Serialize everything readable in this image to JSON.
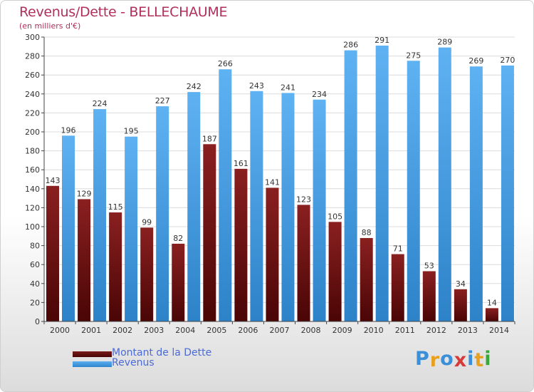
{
  "chart_data": {
    "type": "bar",
    "title": "Revenus/Dette - BELLECHAUME",
    "subtitle": "(en milliers d'€)",
    "xlabel": "",
    "ylabel": "",
    "ylim": [
      0,
      300
    ],
    "yticks": [
      "0",
      "20",
      "40",
      "60",
      "80",
      "100",
      "120",
      "140",
      "160",
      "180",
      "200",
      "220",
      "240",
      "260",
      "280",
      "300"
    ],
    "grid": true,
    "categories": [
      "2000",
      "2001",
      "2002",
      "2003",
      "2004",
      "2005",
      "2006",
      "2007",
      "2008",
      "2009",
      "2010",
      "2011",
      "2012",
      "2013",
      "2014"
    ],
    "series": [
      {
        "name": "Montant de la Dette",
        "color": "#6b1212",
        "values": [
          143,
          129,
          115,
          99,
          82,
          187,
          161,
          141,
          123,
          105,
          88,
          71,
          53,
          34,
          14
        ],
        "labels": [
          "143",
          "129",
          "115",
          "99",
          "82",
          "187",
          "161",
          "141",
          "123",
          "105",
          "88",
          "71",
          "53",
          "34",
          "14"
        ]
      },
      {
        "name": "Revenus",
        "color": "#4a9be0",
        "values": [
          196,
          224,
          195,
          227,
          242,
          266,
          243,
          241,
          234,
          286,
          291,
          275,
          289,
          269,
          270
        ],
        "labels": [
          "196",
          "224",
          "195",
          "227",
          "242",
          "266",
          "243",
          "241",
          "234",
          "286",
          "291",
          "275",
          "289",
          "269",
          "270"
        ]
      }
    ],
    "legend_position": "bottom-left"
  },
  "brand": {
    "letters": [
      "P",
      "r",
      "o",
      "x",
      "i",
      "t",
      "i"
    ],
    "colors": [
      "#3a8fd8",
      "#e8a020",
      "#3a8fd8",
      "#d83a3a",
      "#3a8fd8",
      "#e8a020",
      "#3aa83a"
    ]
  }
}
